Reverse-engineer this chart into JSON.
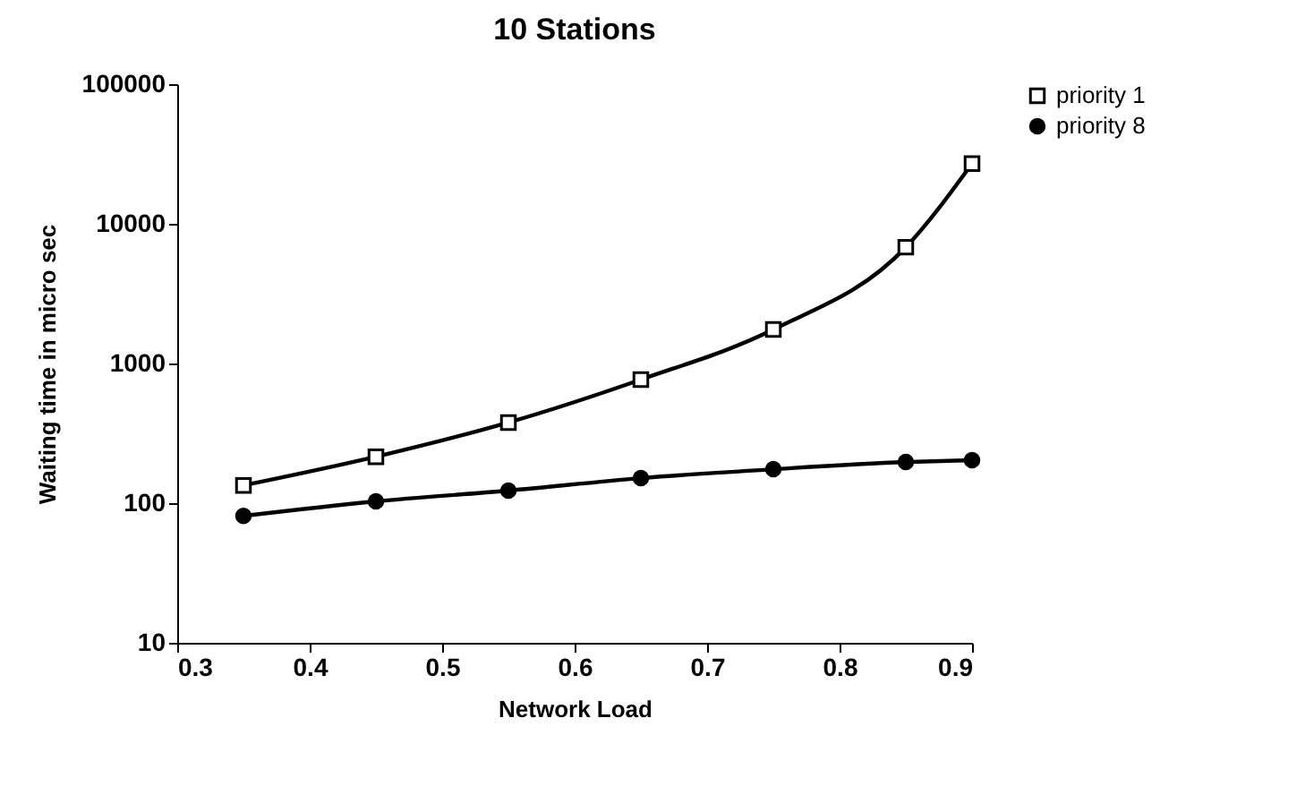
{
  "chart_data": {
    "type": "line",
    "title": "10 Stations",
    "xlabel": "Network Load",
    "ylabel": "Waiting time in micro sec",
    "x": [
      0.35,
      0.45,
      0.55,
      0.65,
      0.75,
      0.85,
      0.9
    ],
    "series": [
      {
        "name": "priority 1",
        "color": "#000000",
        "marker": "square",
        "values": [
          134,
          215,
          378,
          767,
          1750,
          6800,
          27000
        ]
      },
      {
        "name": "priority 8",
        "color": "#000000",
        "marker": "circle",
        "values": [
          81,
          103,
          123,
          151,
          175,
          197,
          203
        ]
      }
    ],
    "xlim": [
      0.3,
      0.9
    ],
    "xticks": [
      0.3,
      0.4,
      0.5,
      0.6,
      0.7,
      0.8,
      0.9
    ],
    "ylim": [
      10,
      100000
    ],
    "yticks": [
      10,
      100,
      1000,
      10000,
      100000
    ],
    "log": true,
    "grid": false,
    "legend": "right",
    "line_style": "solid"
  }
}
